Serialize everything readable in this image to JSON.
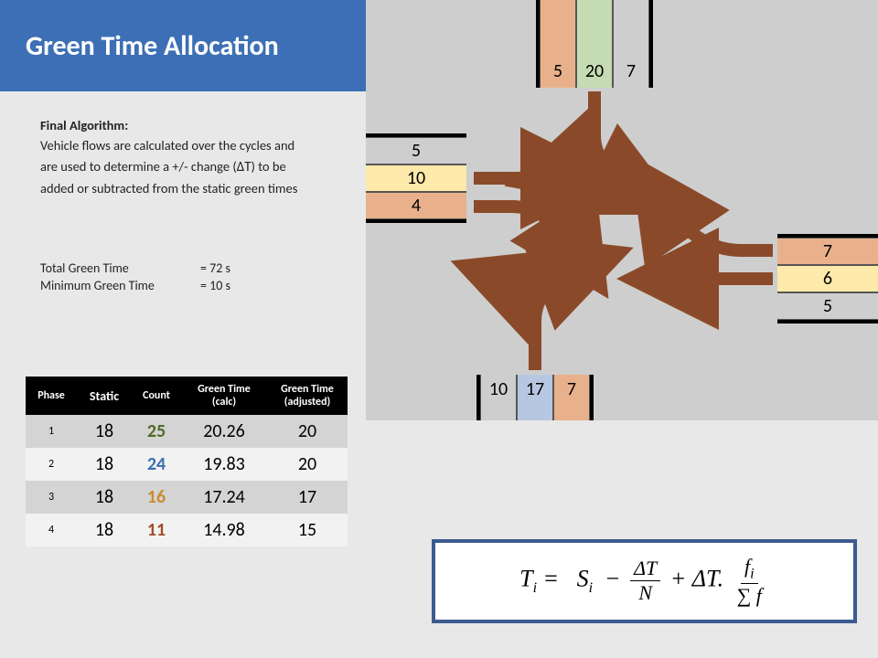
{
  "header": {
    "title": "Green Time Allocation"
  },
  "description": {
    "heading": "Final Algorithm:",
    "body1": "Vehicle flows are calculated over the cycles and are used to determine a +/- change (",
    "delta": "ΔT",
    "body2": ") to be added  or subtracted from the static green times"
  },
  "totals": {
    "total_label": "Total Green Time",
    "total_value": "= 72 s",
    "min_label": "Minimum Green Time",
    "min_value": "= 10 s"
  },
  "table": {
    "columns": [
      "Phase",
      "Static",
      "Count",
      "Green Time (calc)",
      "Green Time (adjusted)"
    ],
    "rows": [
      {
        "phase": "1",
        "static": "18",
        "count": "25",
        "count_color": "#4f6b28",
        "calc": "20.26",
        "adj": "20"
      },
      {
        "phase": "2",
        "static": "18",
        "count": "24",
        "count_color": "#3b6fb5",
        "calc": "19.83",
        "adj": "20"
      },
      {
        "phase": "3",
        "static": "18",
        "count": "16",
        "count_color": "#c88b2e",
        "calc": "17.24",
        "adj": "17"
      },
      {
        "phase": "4",
        "static": "18",
        "count": "11",
        "count_color": "#a34c2c",
        "calc": "14.98",
        "adj": "15"
      }
    ]
  },
  "lanes": {
    "west": [
      {
        "value": "5",
        "bg": "#cecece"
      },
      {
        "value": "10",
        "bg": "#fde9a9"
      },
      {
        "value": "4",
        "bg": "#e9b18b"
      }
    ],
    "north": [
      {
        "value": "5",
        "bg": "#e9b18b"
      },
      {
        "value": "20",
        "bg": "#c5dbb3"
      },
      {
        "value": "7",
        "bg": "#cecece"
      }
    ],
    "east": [
      {
        "value": "7",
        "bg": "#e9b18b"
      },
      {
        "value": "6",
        "bg": "#fde9a9"
      },
      {
        "value": "5",
        "bg": "#cecece"
      }
    ],
    "south": [
      {
        "value": "10",
        "bg": "#cecece"
      },
      {
        "value": "17",
        "bg": "#b7c7e2"
      },
      {
        "value": "7",
        "bg": "#e9b18b"
      }
    ]
  },
  "colors": {
    "arrow": "#8a4a2a",
    "road_border": "#000000",
    "intersection_bg": "#cecece"
  },
  "formula": {
    "T": "T",
    "i": "i",
    "eq": " = ",
    "S": "S",
    "minus": " − ",
    "dT": "ΔT",
    "N": "N",
    "plus": " + ",
    "dot": ".",
    "f": "f",
    "sumf": "∑ f"
  }
}
